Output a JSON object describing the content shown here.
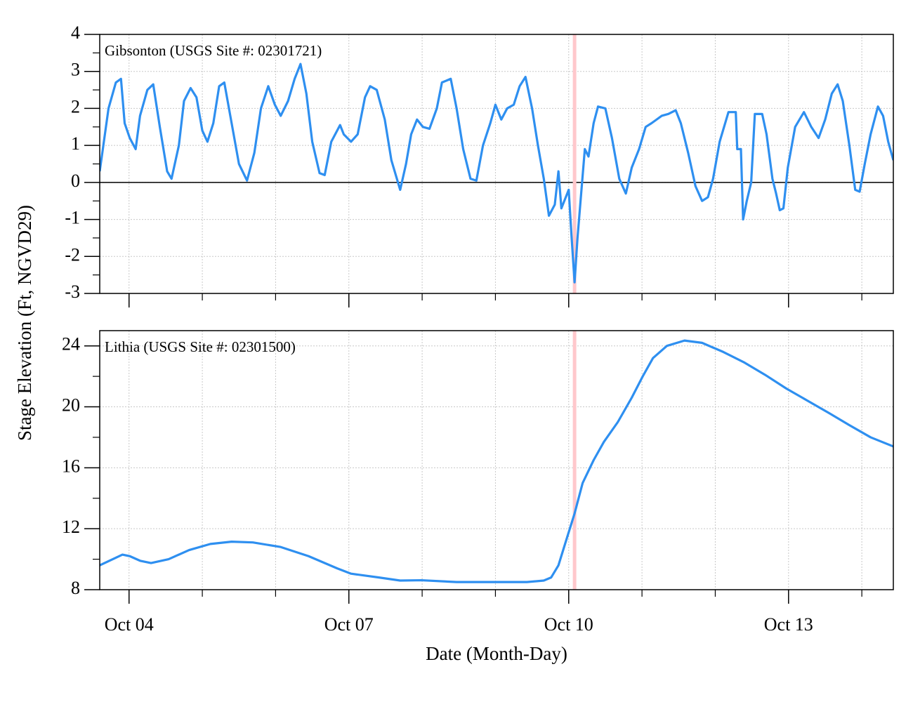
{
  "chart_data": [
    {
      "type": "line",
      "title": "Gibsonton (USGS Site #: 02301721)",
      "ylabel": "Stage Elevation (Ft, NGVD29)",
      "xlim": [
        3.6,
        14.43
      ],
      "xticks_major": [
        4,
        7,
        10,
        13
      ],
      "xticks_minor": [
        5,
        6,
        8,
        9,
        11,
        12,
        14
      ],
      "ylim": [
        -3,
        4
      ],
      "yticks": [
        -3,
        -2,
        -1,
        0,
        1,
        2,
        3,
        4
      ],
      "yticks_minor": [
        -2.5,
        -1.5,
        -0.5,
        0.5,
        1.5,
        2.5,
        3.5
      ],
      "grid": true,
      "zero_line": true,
      "marker_x": 10.08,
      "marker_color": "#ffc8cc",
      "x": [
        3.6,
        3.72,
        3.82,
        3.89,
        3.94,
        4.01,
        4.09,
        4.15,
        4.25,
        4.33,
        4.42,
        4.52,
        4.58,
        4.68,
        4.75,
        4.84,
        4.92,
        5.0,
        5.07,
        5.15,
        5.23,
        5.3,
        5.4,
        5.5,
        5.61,
        5.71,
        5.8,
        5.9,
        5.99,
        6.07,
        6.17,
        6.26,
        6.34,
        6.42,
        6.5,
        6.6,
        6.67,
        6.76,
        6.88,
        6.93,
        7.03,
        7.12,
        7.22,
        7.29,
        7.38,
        7.49,
        7.58,
        7.7,
        7.78,
        7.85,
        7.93,
        8.01,
        8.1,
        8.2,
        8.27,
        8.39,
        8.47,
        8.56,
        8.66,
        8.74,
        8.83,
        8.93,
        9.0,
        9.08,
        9.16,
        9.25,
        9.33,
        9.41,
        9.5,
        9.58,
        9.66,
        9.73,
        9.81,
        9.86,
        9.9,
        9.96,
        10.0,
        10.04,
        10.08,
        10.12,
        10.17,
        10.22,
        10.27,
        10.34,
        10.4,
        10.5,
        10.59,
        10.69,
        10.78,
        10.86,
        10.96,
        11.05,
        11.13,
        11.2,
        11.27,
        11.36,
        11.46,
        11.53,
        11.63,
        11.73,
        11.82,
        11.9,
        11.97,
        12.06,
        12.18,
        12.28,
        12.3,
        12.35,
        12.38,
        12.43,
        12.49,
        12.54,
        12.64,
        12.7,
        12.78,
        12.83,
        12.88,
        12.93,
        12.99,
        13.09,
        13.21,
        13.31,
        13.41,
        13.5,
        13.59,
        13.67,
        13.74,
        13.83,
        13.91,
        13.97,
        14.04,
        14.12,
        14.22,
        14.29,
        14.36,
        14.43
      ],
      "series": [
        {
          "color": "#2e8ff0",
          "values": [
            0.3,
            2.0,
            2.7,
            2.8,
            1.6,
            1.2,
            0.9,
            1.8,
            2.5,
            2.65,
            1.5,
            0.3,
            0.1,
            1.0,
            2.2,
            2.55,
            2.3,
            1.4,
            1.1,
            1.6,
            2.6,
            2.7,
            1.6,
            0.5,
            0.05,
            0.8,
            2.0,
            2.6,
            2.1,
            1.8,
            2.2,
            2.8,
            3.2,
            2.4,
            1.1,
            0.25,
            0.2,
            1.1,
            1.55,
            1.3,
            1.1,
            1.3,
            2.3,
            2.6,
            2.5,
            1.7,
            0.6,
            -0.2,
            0.5,
            1.3,
            1.7,
            1.5,
            1.45,
            2.0,
            2.7,
            2.8,
            2.0,
            0.9,
            0.1,
            0.05,
            1.0,
            1.6,
            2.1,
            1.7,
            2.0,
            2.1,
            2.6,
            2.85,
            2.0,
            1.0,
            0.1,
            -0.9,
            -0.6,
            0.3,
            -0.7,
            -0.4,
            -0.2,
            -1.5,
            -2.7,
            -1.5,
            -0.3,
            0.9,
            0.7,
            1.6,
            2.05,
            2.0,
            1.2,
            0.1,
            -0.3,
            0.4,
            0.9,
            1.5,
            1.6,
            1.7,
            1.8,
            1.85,
            1.95,
            1.6,
            0.8,
            -0.1,
            -0.5,
            -0.4,
            0.1,
            1.1,
            1.9,
            1.9,
            0.9,
            0.9,
            -1.0,
            -0.5,
            0.0,
            1.85,
            1.85,
            1.3,
            0.1,
            -0.3,
            -0.75,
            -0.7,
            0.4,
            1.5,
            1.9,
            1.5,
            1.2,
            1.7,
            2.4,
            2.65,
            2.2,
            1.0,
            -0.2,
            -0.25,
            0.5,
            1.3,
            2.05,
            1.8,
            1.1,
            0.6
          ]
        }
      ]
    },
    {
      "type": "line",
      "title": "Lithia (USGS Site #: 02301500)",
      "xlabel": "Date (Month-Day)",
      "xlim": [
        3.6,
        14.43
      ],
      "xticks": [
        {
          "value": 4,
          "label": "Oct 04"
        },
        {
          "value": 7,
          "label": "Oct 07"
        },
        {
          "value": 10,
          "label": "Oct 10"
        },
        {
          "value": 13,
          "label": "Oct 13"
        }
      ],
      "xticks_minor": [
        5,
        6,
        8,
        9,
        11,
        12,
        14
      ],
      "ylim": [
        8,
        25
      ],
      "yticks": [
        8,
        12,
        16,
        20,
        24
      ],
      "yticks_minor": [
        10,
        14,
        18,
        22
      ],
      "grid": true,
      "marker_x": 10.08,
      "marker_color": "#ffc8cc",
      "x": [
        3.6,
        3.91,
        4.01,
        4.15,
        4.3,
        4.54,
        4.82,
        5.11,
        5.4,
        5.69,
        6.07,
        6.45,
        6.84,
        7.03,
        7.41,
        7.7,
        7.99,
        8.47,
        8.95,
        9.43,
        9.66,
        9.76,
        9.86,
        9.95,
        10.08,
        10.19,
        10.34,
        10.48,
        10.67,
        10.86,
        11.01,
        11.15,
        11.34,
        11.58,
        11.82,
        12.11,
        12.4,
        12.68,
        12.97,
        13.26,
        13.55,
        13.83,
        14.12,
        14.43
      ],
      "series": [
        {
          "color": "#2e8ff0",
          "values": [
            9.6,
            10.3,
            10.2,
            9.9,
            9.75,
            10.0,
            10.6,
            11.0,
            11.15,
            11.1,
            10.8,
            10.2,
            9.4,
            9.05,
            8.8,
            8.6,
            8.62,
            8.5,
            8.5,
            8.5,
            8.6,
            8.8,
            9.6,
            11.0,
            13.0,
            15.0,
            16.5,
            17.7,
            19.0,
            20.6,
            22.0,
            23.2,
            24.0,
            24.35,
            24.2,
            23.6,
            22.9,
            22.1,
            21.2,
            20.4,
            19.6,
            18.8,
            18.0,
            17.4
          ]
        }
      ]
    }
  ]
}
